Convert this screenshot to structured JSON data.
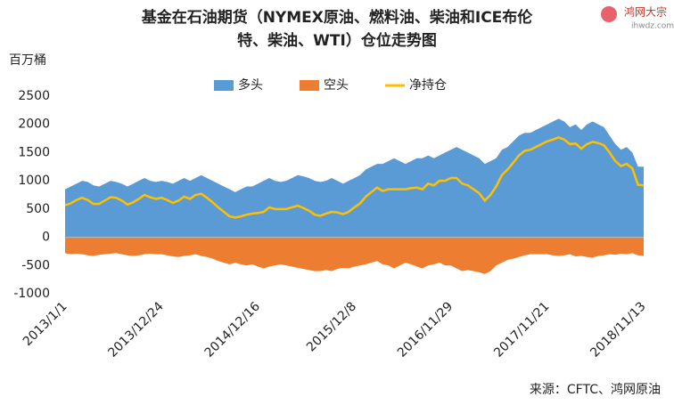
{
  "chart_data": {
    "type": "area",
    "title_lines": [
      "基金在石油期货（NYMEX原油、燃料油、柴油和ICE布伦",
      "特、柴油、WTI）仓位走势图"
    ],
    "y_unit": "百万桶",
    "source": "来源：CFTC、鸿网原油",
    "logo": {
      "name": "鸿网大宗",
      "url": "ihwdz.com"
    },
    "categories": [
      "2013/1/1",
      null,
      null,
      null,
      null,
      null,
      null,
      null,
      null,
      null,
      null,
      null,
      null,
      null,
      null,
      null,
      null,
      "2013/12/24",
      null,
      null,
      null,
      null,
      null,
      null,
      null,
      null,
      null,
      null,
      null,
      null,
      null,
      null,
      null,
      null,
      "2014/12/16",
      null,
      null,
      null,
      null,
      null,
      null,
      null,
      null,
      null,
      null,
      null,
      null,
      null,
      null,
      null,
      null,
      "2015/12/8",
      null,
      null,
      null,
      null,
      null,
      null,
      null,
      null,
      null,
      null,
      null,
      null,
      null,
      null,
      null,
      null,
      "2016/11/29",
      null,
      null,
      null,
      null,
      null,
      null,
      null,
      null,
      null,
      null,
      null,
      null,
      null,
      null,
      null,
      null,
      "2017/11/21",
      null,
      null,
      null,
      null,
      null,
      null,
      null,
      null,
      null,
      null,
      null,
      null,
      null,
      null,
      null,
      null,
      "2018/11/13"
    ],
    "series": [
      {
        "name": "多头",
        "color": "#5b9bd5",
        "kind": "area",
        "values": [
          850,
          900,
          950,
          1000,
          980,
          920,
          900,
          950,
          1000,
          980,
          950,
          900,
          950,
          1000,
          1050,
          1000,
          980,
          1000,
          980,
          950,
          1000,
          1050,
          1000,
          1050,
          1100,
          1050,
          1000,
          950,
          900,
          850,
          800,
          850,
          900,
          900,
          950,
          1000,
          1050,
          1000,
          980,
          1000,
          1050,
          1100,
          1080,
          1050,
          1000,
          980,
          1000,
          1050,
          1000,
          950,
          1000,
          1050,
          1100,
          1200,
          1250,
          1300,
          1300,
          1350,
          1400,
          1350,
          1300,
          1350,
          1400,
          1400,
          1450,
          1400,
          1450,
          1500,
          1550,
          1600,
          1550,
          1500,
          1450,
          1400,
          1300,
          1350,
          1400,
          1550,
          1600,
          1700,
          1800,
          1850,
          1850,
          1900,
          1950,
          2000,
          2050,
          2100,
          2050,
          1950,
          2000,
          1900,
          2000,
          2050,
          2000,
          1950,
          1800,
          1650,
          1550,
          1600,
          1500,
          1250,
          1250
        ]
      },
      {
        "name": "空头",
        "color": "#ed7d31",
        "kind": "area",
        "values": [
          -280,
          -300,
          -290,
          -300,
          -320,
          -330,
          -310,
          -300,
          -290,
          -280,
          -300,
          -320,
          -330,
          -320,
          -300,
          -290,
          -300,
          -300,
          -320,
          -340,
          -350,
          -330,
          -320,
          -300,
          -330,
          -350,
          -380,
          -420,
          -450,
          -480,
          -450,
          -480,
          -500,
          -480,
          -520,
          -550,
          -520,
          -500,
          -480,
          -500,
          -520,
          -540,
          -560,
          -580,
          -600,
          -600,
          -580,
          -600,
          -560,
          -540,
          -550,
          -520,
          -500,
          -480,
          -450,
          -420,
          -480,
          -500,
          -550,
          -500,
          -450,
          -480,
          -520,
          -550,
          -500,
          -480,
          -450,
          -500,
          -500,
          -550,
          -600,
          -580,
          -600,
          -620,
          -650,
          -600,
          -500,
          -450,
          -400,
          -380,
          -350,
          -320,
          -300,
          -300,
          -300,
          -300,
          -320,
          -330,
          -320,
          -300,
          -340,
          -330,
          -350,
          -360,
          -330,
          -320,
          -300,
          -310,
          -290,
          -300,
          -280,
          -320,
          -330
        ]
      },
      {
        "name": "净持仓",
        "color": "#ffc000",
        "kind": "line",
        "values": [
          570,
          600,
          660,
          700,
          660,
          590,
          590,
          650,
          710,
          700,
          650,
          580,
          620,
          680,
          750,
          710,
          680,
          700,
          660,
          610,
          650,
          720,
          680,
          750,
          770,
          700,
          620,
          530,
          450,
          370,
          350,
          370,
          400,
          420,
          430,
          450,
          530,
          500,
          500,
          500,
          530,
          560,
          520,
          470,
          400,
          380,
          420,
          450,
          440,
          410,
          450,
          530,
          600,
          720,
          800,
          880,
          820,
          850,
          850,
          850,
          850,
          870,
          880,
          850,
          950,
          920,
          1000,
          1000,
          1050,
          1050,
          950,
          920,
          850,
          780,
          650,
          750,
          900,
          1100,
          1200,
          1320,
          1450,
          1530,
          1550,
          1600,
          1650,
          1700,
          1730,
          1770,
          1730,
          1650,
          1660,
          1570,
          1650,
          1690,
          1670,
          1630,
          1500,
          1350,
          1260,
          1300,
          1220,
          930,
          920
        ]
      }
    ],
    "ylim": [
      -1000,
      2500
    ],
    "yticks": [
      -1000,
      -500,
      0,
      500,
      1000,
      1500,
      2000,
      2500
    ],
    "grid": false
  }
}
